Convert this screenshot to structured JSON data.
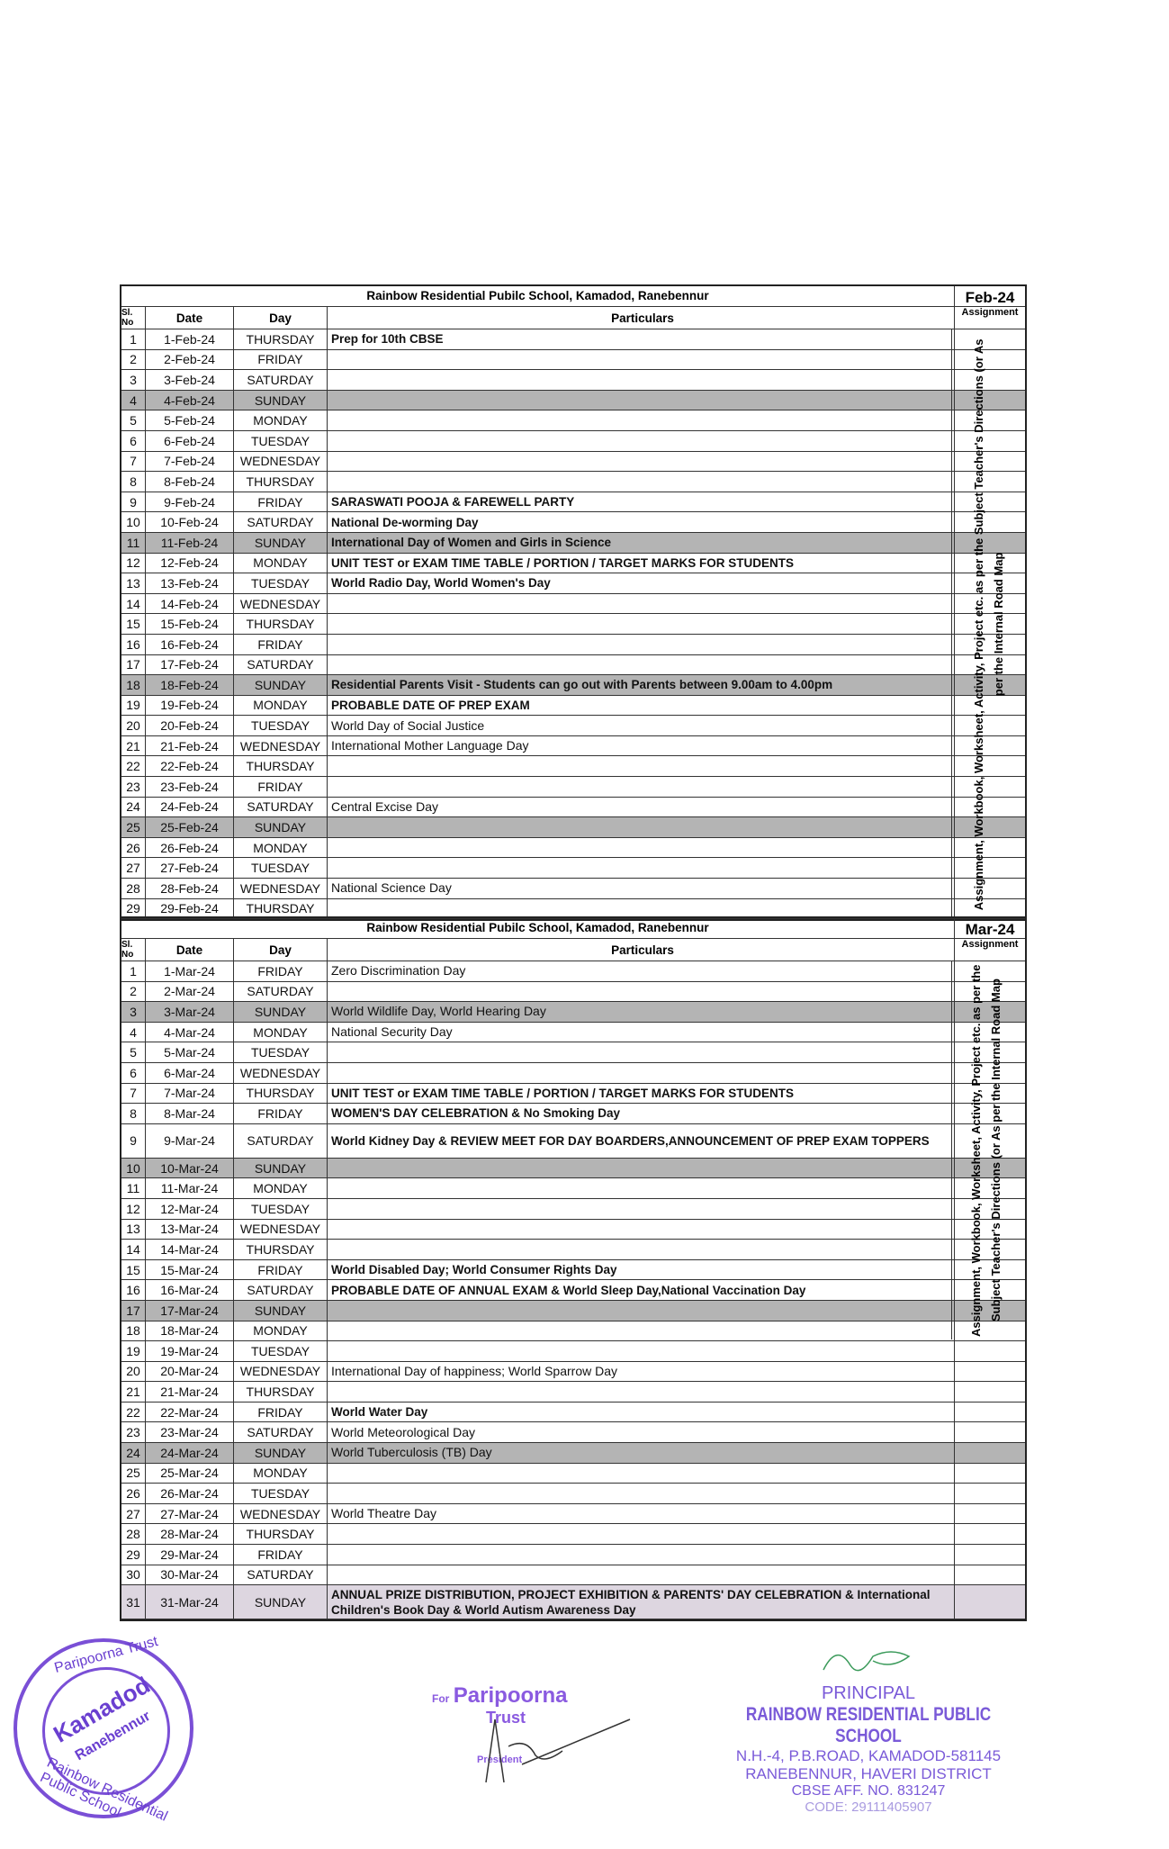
{
  "school": "Rainbow Residential Pubilc School,  Kamadod, Ranebennur",
  "headers": {
    "sl": "Sl. No",
    "date": "Date",
    "day": "Day",
    "particulars": "Particulars",
    "assignment": "Assignment"
  },
  "assignment_note_feb": "Assignment, Workbook, Worksheet, Activity, Project etc. as per the Subject Teacher's Directions (or As per the  Internal Road Map",
  "assignment_note_mar": "Assignment, Workbook, Worksheet, Activity, Project etc. as per the Subject Teacher's Directions (or As per the  Internal Road Map",
  "feb": {
    "month": "Feb-24",
    "rows": [
      [
        "1",
        "1-Feb-24",
        "THURSDAY",
        "Prep for 10th CBSE",
        "b"
      ],
      [
        "2",
        "2-Feb-24",
        "FRIDAY",
        "",
        ""
      ],
      [
        "3",
        "3-Feb-24",
        "SATURDAY",
        "",
        ""
      ],
      [
        "4",
        "4-Feb-24",
        "SUNDAY",
        "",
        "sun"
      ],
      [
        "5",
        "5-Feb-24",
        "MONDAY",
        "",
        ""
      ],
      [
        "6",
        "6-Feb-24",
        "TUESDAY",
        "",
        ""
      ],
      [
        "7",
        "7-Feb-24",
        "WEDNESDAY",
        "",
        ""
      ],
      [
        "8",
        "8-Feb-24",
        "THURSDAY",
        "",
        ""
      ],
      [
        "9",
        "9-Feb-24",
        "FRIDAY",
        "SARASWATI POOJA & FAREWELL PARTY",
        "b"
      ],
      [
        "10",
        "10-Feb-24",
        "SATURDAY",
        "National De-worming Day",
        "b"
      ],
      [
        "11",
        "11-Feb-24",
        "SUNDAY",
        "International Day of Women and Girls in Science",
        "sun b"
      ],
      [
        "12",
        "12-Feb-24",
        "MONDAY",
        "UNIT TEST or EXAM TIME TABLE / PORTION / TARGET MARKS  FOR STUDENTS",
        "b"
      ],
      [
        "13",
        "13-Feb-24",
        "TUESDAY",
        " World Radio Day, World Women's Day",
        "b"
      ],
      [
        "14",
        "14-Feb-24",
        "WEDNESDAY",
        "",
        ""
      ],
      [
        "15",
        "15-Feb-24",
        "THURSDAY",
        "",
        ""
      ],
      [
        "16",
        "16-Feb-24",
        "FRIDAY",
        "",
        ""
      ],
      [
        "17",
        "17-Feb-24",
        "SATURDAY",
        "",
        ""
      ],
      [
        "18",
        "18-Feb-24",
        "SUNDAY",
        "Residential Parents Visit - Students can go out with Parents between 9.00am to 4.00pm",
        "sun b"
      ],
      [
        "19",
        "19-Feb-24",
        "MONDAY",
        "PROBABLE DATE OF PREP EXAM",
        "b"
      ],
      [
        "20",
        "20-Feb-24",
        "TUESDAY",
        "World Day of Social Justice",
        ""
      ],
      [
        "21",
        "21-Feb-24",
        "WEDNESDAY",
        "International Mother Language Day",
        ""
      ],
      [
        "22",
        "22-Feb-24",
        "THURSDAY",
        "",
        ""
      ],
      [
        "23",
        "23-Feb-24",
        "FRIDAY",
        "",
        ""
      ],
      [
        "24",
        "24-Feb-24",
        "SATURDAY",
        "Central Excise Day",
        ""
      ],
      [
        "25",
        "25-Feb-24",
        "SUNDAY",
        "",
        "sun"
      ],
      [
        "26",
        "26-Feb-24",
        "MONDAY",
        "",
        ""
      ],
      [
        "27",
        "27-Feb-24",
        "TUESDAY",
        "",
        ""
      ],
      [
        "28",
        "28-Feb-24",
        "WEDNESDAY",
        "National Science Day",
        ""
      ],
      [
        "29",
        "29-Feb-24",
        "THURSDAY",
        "",
        ""
      ]
    ]
  },
  "mar": {
    "month": "Mar-24",
    "rows": [
      [
        "1",
        "1-Mar-24",
        "FRIDAY",
        "Zero Discrimination Day",
        ""
      ],
      [
        "2",
        "2-Mar-24",
        "SATURDAY",
        "",
        ""
      ],
      [
        "3",
        "3-Mar-24",
        "SUNDAY",
        "World Wildlife Day, World Hearing Day",
        "sun"
      ],
      [
        "4",
        "4-Mar-24",
        "MONDAY",
        " National Security Day",
        ""
      ],
      [
        "5",
        "5-Mar-24",
        "TUESDAY",
        "",
        ""
      ],
      [
        "6",
        "6-Mar-24",
        "WEDNESDAY",
        "",
        ""
      ],
      [
        "7",
        "7-Mar-24",
        "THURSDAY",
        "UNIT TEST or EXAM TIME TABLE / PORTION / TARGET MARKS  FOR STUDENTS",
        "b"
      ],
      [
        "8",
        "8-Mar-24",
        "FRIDAY",
        " WOMEN'S DAY CELEBRATION & No Smoking Day",
        "b"
      ],
      [
        "9",
        "9-Mar-24",
        "SATURDAY",
        "World Kidney Day & REVIEW MEET FOR DAY BOARDERS,ANNOUNCEMENT OF PREP EXAM TOPPERS",
        "b tall"
      ],
      [
        "10",
        "10-Mar-24",
        "SUNDAY",
        "",
        "sun"
      ],
      [
        "11",
        "11-Mar-24",
        "MONDAY",
        "",
        ""
      ],
      [
        "12",
        "12-Mar-24",
        "TUESDAY",
        "",
        ""
      ],
      [
        "13",
        "13-Mar-24",
        "WEDNESDAY",
        "",
        ""
      ],
      [
        "14",
        "14-Mar-24",
        "THURSDAY",
        "",
        ""
      ],
      [
        "15",
        "15-Mar-24",
        "FRIDAY",
        "World Disabled Day; World Consumer Rights Day",
        "b"
      ],
      [
        "16",
        "16-Mar-24",
        "SATURDAY",
        "PROBABLE DATE OF ANNUAL EXAM & World Sleep Day,National Vaccination Day",
        "b"
      ],
      [
        "17",
        "17-Mar-24",
        "SUNDAY",
        "",
        "sun"
      ],
      [
        "18",
        "18-Mar-24",
        "MONDAY",
        "",
        ""
      ],
      [
        "19",
        "19-Mar-24",
        "TUESDAY",
        "",
        ""
      ],
      [
        "20",
        "20-Mar-24",
        "WEDNESDAY",
        "International Day of happiness; World Sparrow Day",
        ""
      ],
      [
        "21",
        "21-Mar-24",
        "THURSDAY",
        "",
        ""
      ],
      [
        "22",
        "22-Mar-24",
        "FRIDAY",
        "World Water Day",
        "b"
      ],
      [
        "23",
        "23-Mar-24",
        "SATURDAY",
        "World Meteorological Day",
        ""
      ],
      [
        "24",
        "24-Mar-24",
        "SUNDAY",
        "World Tuberculosis (TB) Day",
        "sun"
      ],
      [
        "25",
        "25-Mar-24",
        "MONDAY",
        "",
        ""
      ],
      [
        "26",
        "26-Mar-24",
        "TUESDAY",
        "",
        ""
      ],
      [
        "27",
        "27-Mar-24",
        "WEDNESDAY",
        "World Theatre Day",
        ""
      ],
      [
        "28",
        "28-Mar-24",
        "THURSDAY",
        "",
        ""
      ],
      [
        "29",
        "29-Mar-24",
        "FRIDAY",
        "",
        ""
      ],
      [
        "30",
        "30-Mar-24",
        "SATURDAY",
        "",
        ""
      ],
      [
        "31",
        "31-Mar-24",
        "SUNDAY",
        "ANNUAL PRIZE DISTRIBUTION, PROJECT EXHIBITION & PARENTS' DAY CELEBRATION  & International Children's Book Day & World Autism Awareness Day",
        "light b tall"
      ]
    ]
  },
  "stamp": {
    "top": "Paripoorna Trust",
    "center1": "Kamadod",
    "center2": "Ranebennur",
    "bottom": "Rainbow Residential Public School"
  },
  "trust_sign": {
    "for": "For",
    "name": "Paripoorna",
    "trust": "Trust",
    "role": "President"
  },
  "principal": {
    "title": "PRINCIPAL",
    "school": "RAINBOW RESIDENTIAL PUBLIC SCHOOL",
    "addr1": "N.H.-4, P.B.ROAD, KAMADOD-581145",
    "addr2": "RANEBENNUR, HAVERI DISTRICT",
    "addr3": "CBSE AFF. NO. 831247",
    "addr4": "CODE: 29111405907"
  },
  "colors": {
    "sunday_row": "#b4b4b4",
    "stamp": "#7a4fd6"
  }
}
